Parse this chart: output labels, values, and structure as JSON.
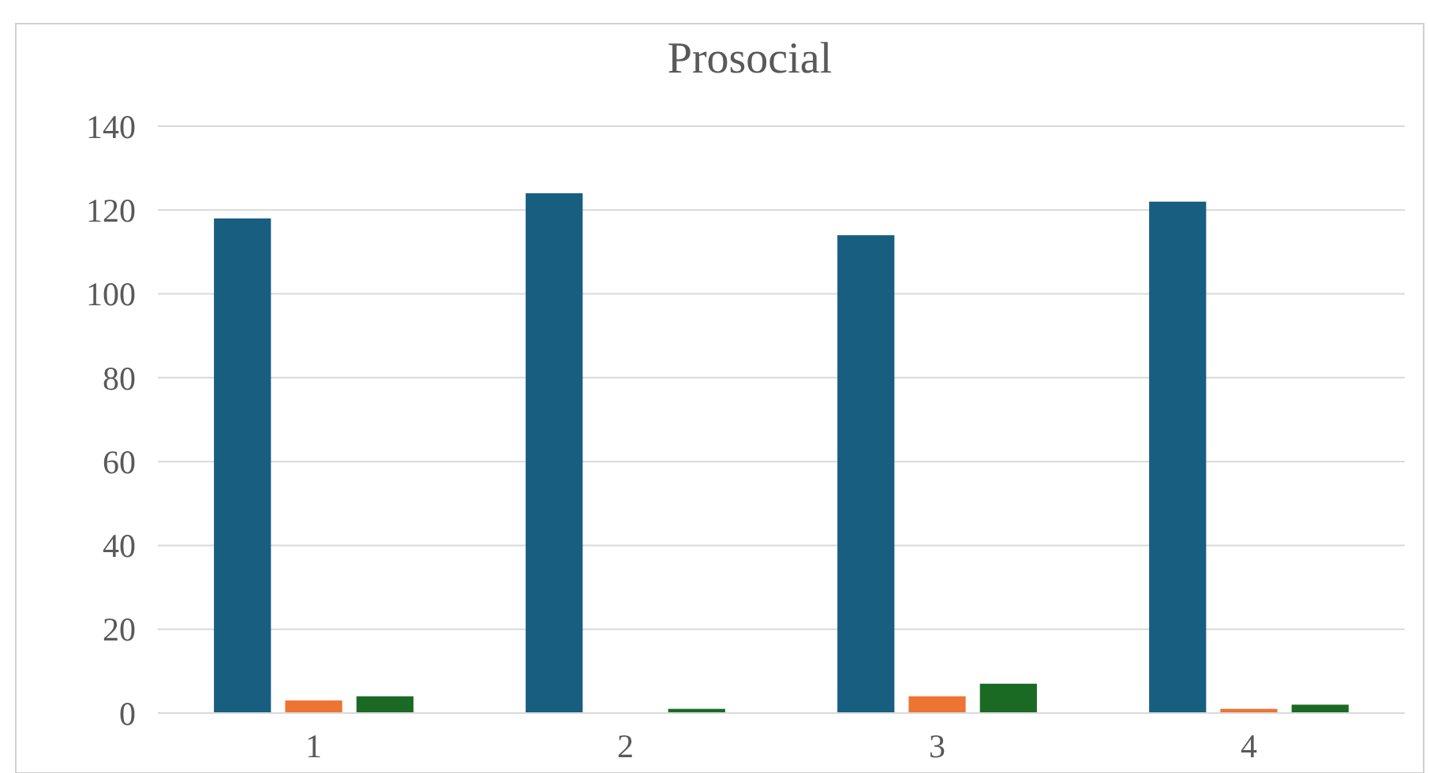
{
  "chart_data": {
    "type": "bar",
    "title": "Prosocial",
    "categories": [
      "1",
      "2",
      "3",
      "4"
    ],
    "series": [
      {
        "color": "#175e81",
        "values": [
          118,
          124,
          114,
          122
        ]
      },
      {
        "color": "#ed7432",
        "values": [
          3,
          0,
          4,
          1
        ]
      },
      {
        "color": "#1b6a24",
        "values": [
          4,
          1,
          7,
          2
        ]
      }
    ],
    "ylim": [
      0,
      140
    ],
    "yticks": [
      0,
      20,
      40,
      60,
      80,
      100,
      120,
      140
    ],
    "grid": "y"
  }
}
